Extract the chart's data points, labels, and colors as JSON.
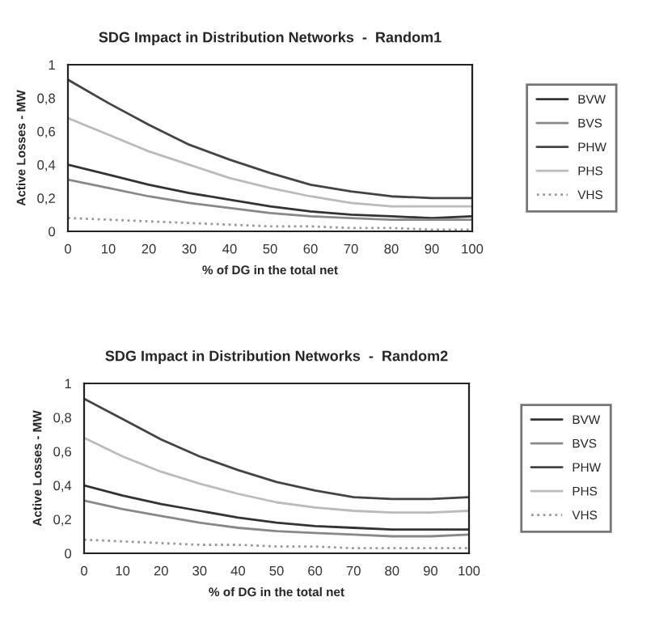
{
  "chart_data": [
    {
      "type": "line",
      "title": "SDG Impact in Distribution Networks  -  Random1",
      "xlabel": "% of DG in the total net",
      "ylabel": "Active Losses - MW",
      "x": [
        0,
        10,
        20,
        30,
        40,
        50,
        60,
        70,
        80,
        90,
        100
      ],
      "xlim": [
        0,
        100
      ],
      "xticks": [
        0,
        10,
        20,
        30,
        40,
        50,
        60,
        70,
        80,
        90,
        100
      ],
      "ylim": [
        0,
        1
      ],
      "yticks": [
        0,
        {
          "value": 0.2,
          "label": "0,2"
        },
        {
          "value": 0.4,
          "label": "0,4"
        },
        {
          "value": 0.6,
          "label": "0,6"
        },
        {
          "value": 0.8,
          "label": "0,8"
        },
        1
      ],
      "grid": false,
      "legend": "right",
      "marker": "none",
      "series": [
        {
          "name": "BVW",
          "color": "#333333",
          "line_style": "solid",
          "values": [
            0.4,
            0.34,
            0.28,
            0.23,
            0.19,
            0.15,
            0.12,
            0.1,
            0.09,
            0.08,
            0.09
          ]
        },
        {
          "name": "BVS",
          "color": "#888888",
          "line_style": "solid",
          "values": [
            0.31,
            0.26,
            0.21,
            0.17,
            0.14,
            0.11,
            0.09,
            0.08,
            0.07,
            0.07,
            0.07
          ]
        },
        {
          "name": "PHW",
          "color": "#444444",
          "line_style": "solid",
          "values": [
            0.91,
            0.77,
            0.64,
            0.52,
            0.43,
            0.35,
            0.28,
            0.24,
            0.21,
            0.2,
            0.2
          ]
        },
        {
          "name": "PHS",
          "color": "#bbbbbb",
          "line_style": "solid",
          "values": [
            0.68,
            0.58,
            0.48,
            0.4,
            0.32,
            0.26,
            0.21,
            0.17,
            0.15,
            0.15,
            0.15
          ]
        },
        {
          "name": "VHS",
          "color": "#999999",
          "line_style": "dotted",
          "values": [
            0.08,
            0.07,
            0.06,
            0.05,
            0.04,
            0.03,
            0.03,
            0.02,
            0.02,
            0.01,
            0.01
          ]
        }
      ]
    },
    {
      "type": "line",
      "title": "SDG Impact in Distribution Networks  -  Random2",
      "xlabel": "% of DG in the total net",
      "ylabel": "Active Losses - MW",
      "x": [
        0,
        10,
        20,
        30,
        40,
        50,
        60,
        70,
        80,
        90,
        100
      ],
      "xlim": [
        0,
        100
      ],
      "xticks": [
        0,
        10,
        20,
        30,
        40,
        50,
        60,
        70,
        80,
        90,
        100
      ],
      "ylim": [
        0,
        1
      ],
      "yticks": [
        0,
        {
          "value": 0.2,
          "label": "0,2"
        },
        {
          "value": 0.4,
          "label": "0,4"
        },
        {
          "value": 0.6,
          "label": "0,6"
        },
        {
          "value": 0.8,
          "label": "0,8"
        },
        1
      ],
      "grid": false,
      "legend": "right",
      "marker": "none",
      "series": [
        {
          "name": "BVW",
          "color": "#333333",
          "line_style": "solid",
          "values": [
            0.4,
            0.34,
            0.29,
            0.25,
            0.21,
            0.18,
            0.16,
            0.15,
            0.14,
            0.14,
            0.14
          ]
        },
        {
          "name": "BVS",
          "color": "#888888",
          "line_style": "solid",
          "values": [
            0.31,
            0.26,
            0.22,
            0.18,
            0.15,
            0.13,
            0.12,
            0.11,
            0.1,
            0.1,
            0.11
          ]
        },
        {
          "name": "PHW",
          "color": "#444444",
          "line_style": "solid",
          "values": [
            0.91,
            0.79,
            0.67,
            0.57,
            0.49,
            0.42,
            0.37,
            0.33,
            0.32,
            0.32,
            0.33
          ]
        },
        {
          "name": "PHS",
          "color": "#bbbbbb",
          "line_style": "solid",
          "values": [
            0.68,
            0.57,
            0.48,
            0.41,
            0.35,
            0.3,
            0.27,
            0.25,
            0.24,
            0.24,
            0.25
          ]
        },
        {
          "name": "VHS",
          "color": "#999999",
          "line_style": "dotted",
          "values": [
            0.08,
            0.07,
            0.06,
            0.05,
            0.05,
            0.04,
            0.04,
            0.03,
            0.03,
            0.03,
            0.03
          ]
        }
      ]
    }
  ]
}
